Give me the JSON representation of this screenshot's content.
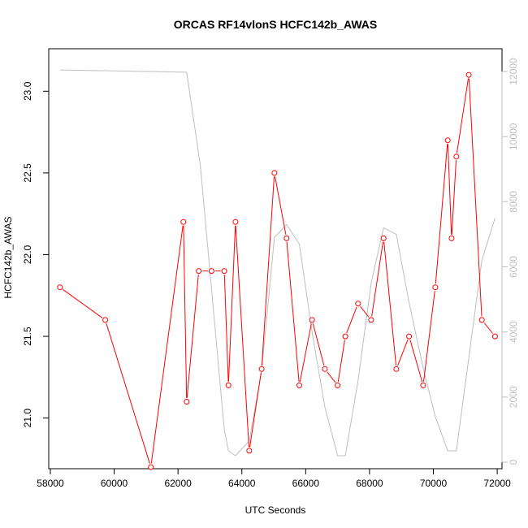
{
  "chart_data": {
    "type": "line",
    "title": "ORCAS RF14vlonS HCFC142b_AWAS",
    "xlabel": "UTC Seconds",
    "ylabel": "HCFC142b_AWAS",
    "xlim": [
      57950,
      72150
    ],
    "ylim": [
      20.69,
      23.26
    ],
    "y2lim": [
      -200,
      12700
    ],
    "x_ticks": [
      58000,
      60000,
      62000,
      64000,
      66000,
      68000,
      70000,
      72000
    ],
    "y_ticks": [
      21.0,
      21.5,
      22.0,
      22.5,
      23.0
    ],
    "y_tick_labels": [
      "21.0",
      "21.5",
      "22.0",
      "22.5",
      "23.0"
    ],
    "y2_ticks": [
      0,
      2000,
      4000,
      6000,
      8000,
      10000,
      12000
    ],
    "series": [
      {
        "color": "#ff0000",
        "marker": "circle",
        "x": [
          58300,
          59720,
          61150,
          62170,
          62270,
          62650,
          63050,
          63450,
          63580,
          63800,
          64230,
          64620,
          65020,
          65400,
          65800,
          66200,
          66600,
          67000,
          67240,
          67640,
          68050,
          68440,
          68840,
          69240,
          69680,
          70060,
          70450,
          70570,
          70720,
          71110,
          71520,
          71930
        ],
        "y": [
          21.8,
          21.6,
          20.7,
          22.2,
          21.1,
          21.9,
          21.9,
          21.9,
          21.2,
          22.2,
          20.8,
          21.3,
          22.5,
          22.1,
          21.2,
          21.6,
          21.3,
          21.2,
          21.5,
          21.7,
          21.6,
          22.1,
          21.3,
          21.5,
          21.2,
          21.8,
          22.7,
          22.1,
          22.6,
          23.1,
          21.6,
          21.5
        ]
      },
      {
        "color": "#bebebe",
        "axis": "right",
        "x": [
          58300,
          62270,
          62700,
          63450,
          63580,
          63800,
          64230,
          64620,
          65020,
          65400,
          65800,
          66200,
          66600,
          67000,
          67240,
          67640,
          68050,
          68440,
          68840,
          69240,
          69680,
          70060,
          70450,
          70720,
          71110,
          71520,
          71930
        ],
        "y": [
          12050,
          11980,
          9100,
          1000,
          350,
          200,
          650,
          2800,
          6900,
          7300,
          6700,
          4000,
          1700,
          200,
          200,
          2500,
          5500,
          7200,
          7000,
          4900,
          2900,
          1400,
          350,
          350,
          3200,
          6200,
          7500
        ]
      }
    ]
  }
}
